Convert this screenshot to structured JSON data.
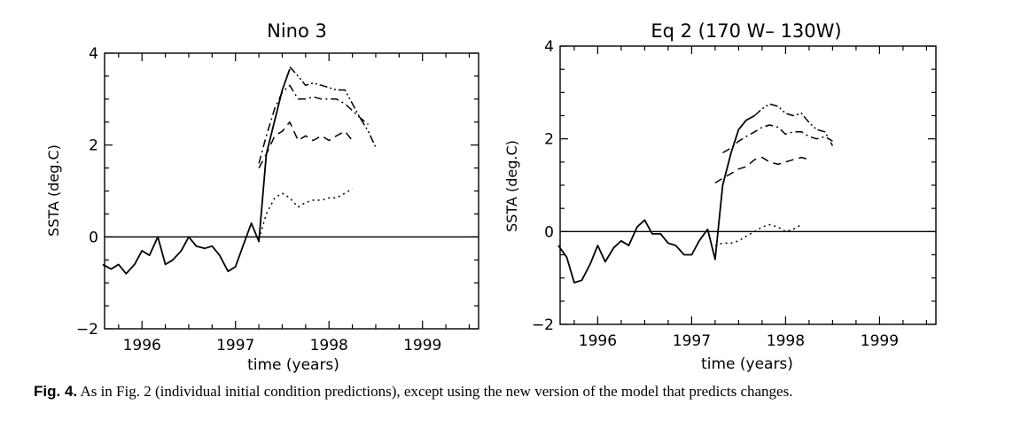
{
  "caption": {
    "label": "Fig. 4.",
    "text": "As in Fig. 2 (individual initial condition predictions), except using the new version of the model that predicts changes."
  },
  "chart_data": [
    {
      "type": "line",
      "title": "Nino 3",
      "xlabel": "time (years)",
      "ylabel": "SSTA (deg.C)",
      "xlim": [
        1995.6,
        1999.6
      ],
      "ylim": [
        -2,
        4
      ],
      "xticks": [
        1996,
        1997,
        1998,
        1999
      ],
      "xtick_labels": [
        "1996",
        "1997",
        "1998",
        "1999"
      ],
      "yticks": [
        -2,
        0,
        2,
        4
      ],
      "ytick_labels": [
        "−2",
        "0",
        "2",
        "4"
      ],
      "grid": false,
      "series": [
        {
          "style": "solid",
          "x": [
            1995.58,
            1995.67,
            1995.75,
            1995.83,
            1995.92,
            1996.0,
            1996.08,
            1996.17,
            1996.25,
            1996.33,
            1996.42,
            1996.5,
            1996.58,
            1996.67,
            1996.75,
            1996.83,
            1996.92,
            1997.0,
            1997.08,
            1997.17,
            1997.25,
            1997.33,
            1997.5,
            1997.58
          ],
          "y": [
            -0.6,
            -0.7,
            -0.6,
            -0.8,
            -0.6,
            -0.3,
            -0.4,
            0.0,
            -0.6,
            -0.5,
            -0.3,
            0.0,
            -0.2,
            -0.25,
            -0.2,
            -0.4,
            -0.75,
            -0.65,
            -0.2,
            0.3,
            -0.1,
            1.8,
            3.2,
            3.65
          ]
        },
        {
          "style": "dash-dot-dot",
          "x": [
            1997.58,
            1997.67,
            1997.75,
            1997.83,
            1997.92,
            1998.0,
            1998.08,
            1998.17,
            1998.25,
            1998.33,
            1998.42,
            1998.5
          ],
          "y": [
            3.7,
            3.5,
            3.3,
            3.35,
            3.3,
            3.25,
            3.2,
            3.2,
            2.9,
            2.6,
            2.3,
            1.95
          ]
        },
        {
          "style": "dash-dot",
          "x": [
            1997.25,
            1997.33,
            1997.42,
            1997.5,
            1997.58,
            1997.67,
            1997.75,
            1997.83,
            1997.92,
            1998.0,
            1998.08,
            1998.17,
            1998.25,
            1998.33,
            1998.42
          ],
          "y": [
            1.6,
            2.2,
            2.8,
            3.15,
            3.3,
            3.0,
            3.0,
            3.05,
            3.0,
            3.0,
            3.0,
            2.9,
            2.75,
            2.6,
            2.45
          ]
        },
        {
          "style": "dashed",
          "x": [
            1997.25,
            1997.33,
            1997.42,
            1997.5,
            1997.58,
            1997.67,
            1997.75,
            1997.83,
            1997.92,
            1998.0,
            1998.08,
            1998.17,
            1998.25
          ],
          "y": [
            1.5,
            1.8,
            2.2,
            2.3,
            2.5,
            2.1,
            2.2,
            2.1,
            2.2,
            2.1,
            2.2,
            2.3,
            2.1
          ]
        },
        {
          "style": "dotted",
          "x": [
            1997.25,
            1997.33,
            1997.42,
            1997.5,
            1997.58,
            1997.67,
            1997.75,
            1997.83,
            1997.92,
            1998.0,
            1998.08,
            1998.17,
            1998.25
          ],
          "y": [
            -0.05,
            0.5,
            0.85,
            0.95,
            0.85,
            0.65,
            0.75,
            0.8,
            0.8,
            0.85,
            0.85,
            0.95,
            1.05
          ]
        }
      ]
    },
    {
      "type": "line",
      "title": "Eq 2  (170 W– 130W)",
      "xlabel": "time (years)",
      "ylabel": "SSTA (deg.C)",
      "xlim": [
        1995.6,
        1999.6
      ],
      "ylim": [
        -2,
        4
      ],
      "xticks": [
        1996,
        1997,
        1998,
        1999
      ],
      "xtick_labels": [
        "1996",
        "1997",
        "1998",
        "1999"
      ],
      "yticks": [
        -2,
        0,
        2,
        4
      ],
      "ytick_labels": [
        "−2",
        "0",
        "2",
        "4"
      ],
      "grid": false,
      "series": [
        {
          "style": "solid",
          "x": [
            1995.58,
            1995.67,
            1995.75,
            1995.83,
            1995.92,
            1996.0,
            1996.08,
            1996.17,
            1996.25,
            1996.33,
            1996.42,
            1996.5,
            1996.58,
            1996.67,
            1996.75,
            1996.83,
            1996.92,
            1997.0,
            1997.08,
            1997.17,
            1997.25,
            1997.33,
            1997.42,
            1997.5,
            1997.58,
            1997.67
          ],
          "y": [
            -0.3,
            -0.55,
            -1.1,
            -1.05,
            -0.7,
            -0.3,
            -0.65,
            -0.35,
            -0.2,
            -0.3,
            0.1,
            0.25,
            -0.05,
            -0.05,
            -0.25,
            -0.3,
            -0.5,
            -0.5,
            -0.2,
            0.05,
            -0.6,
            1.0,
            1.7,
            2.2,
            2.4,
            2.5
          ]
        },
        {
          "style": "dash-dot-dot",
          "x": [
            1997.67,
            1997.75,
            1997.83,
            1997.92,
            1998.0,
            1998.08,
            1998.17,
            1998.25,
            1998.33,
            1998.42,
            1998.5
          ],
          "y": [
            2.5,
            2.65,
            2.75,
            2.7,
            2.55,
            2.5,
            2.55,
            2.35,
            2.2,
            2.15,
            1.85
          ]
        },
        {
          "style": "dash-dot",
          "x": [
            1997.33,
            1997.42,
            1997.5,
            1997.58,
            1997.67,
            1997.75,
            1997.83,
            1997.92,
            1998.0,
            1998.08,
            1998.17,
            1998.25,
            1998.33,
            1998.42,
            1998.5
          ],
          "y": [
            1.7,
            1.8,
            1.95,
            2.05,
            2.15,
            2.25,
            2.3,
            2.25,
            2.1,
            2.15,
            2.15,
            2.05,
            2.0,
            2.05,
            1.95
          ]
        },
        {
          "style": "dashed",
          "x": [
            1997.25,
            1997.33,
            1997.42,
            1997.5,
            1997.58,
            1997.67,
            1997.75,
            1997.83,
            1997.92,
            1998.0,
            1998.08,
            1998.17,
            1998.25
          ],
          "y": [
            1.05,
            1.15,
            1.25,
            1.35,
            1.4,
            1.55,
            1.6,
            1.5,
            1.45,
            1.5,
            1.55,
            1.6,
            1.55
          ]
        },
        {
          "style": "dotted",
          "x": [
            1997.25,
            1997.33,
            1997.42,
            1997.5,
            1997.58,
            1997.67,
            1997.75,
            1997.83,
            1997.92,
            1998.0,
            1998.08,
            1998.17
          ],
          "y": [
            -0.3,
            -0.25,
            -0.25,
            -0.2,
            -0.1,
            0.0,
            0.1,
            0.15,
            0.1,
            0.0,
            0.05,
            0.15
          ]
        }
      ]
    }
  ]
}
